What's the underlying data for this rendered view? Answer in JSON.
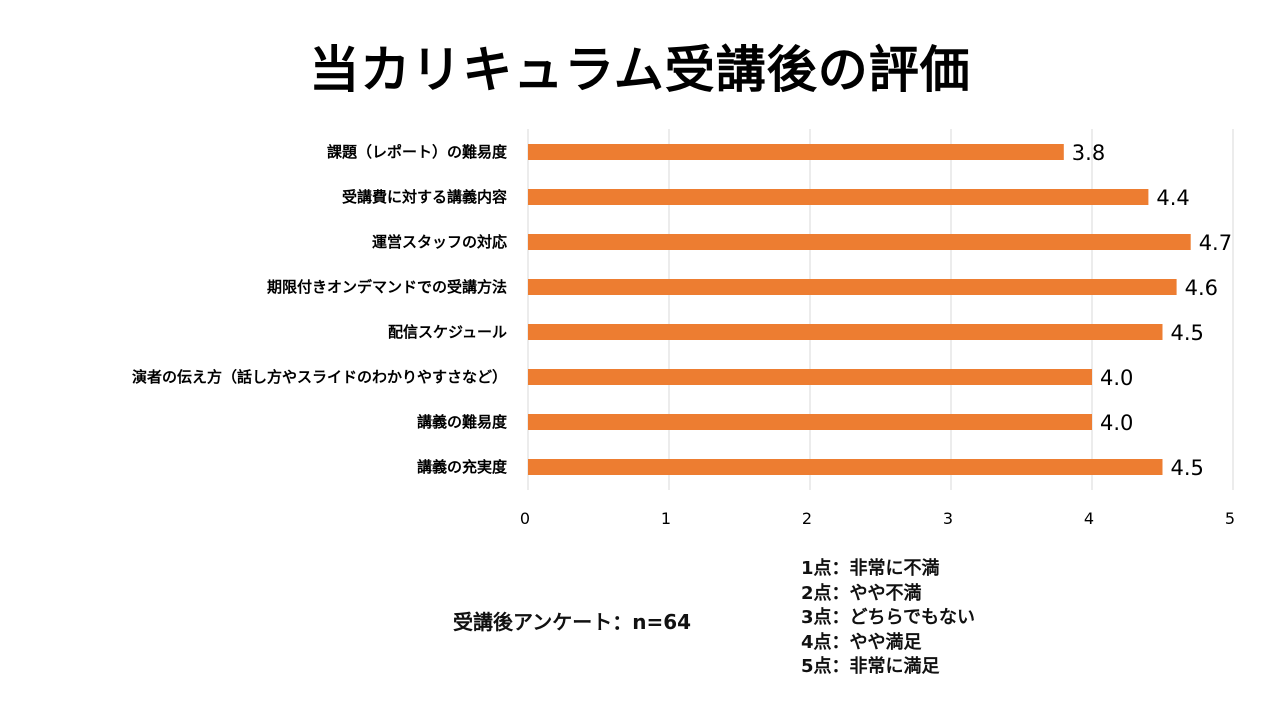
{
  "title": "当カリキュラム受講後の評価",
  "chart_data": {
    "type": "bar",
    "orientation": "horizontal",
    "title": "当カリキュラム受講後の評価",
    "categories": [
      "課題（レポート）の難易度",
      "受講費に対する講義内容",
      "運営スタッフの対応",
      "期限付きオンデマンドでの受講方法",
      "配信スケジュール",
      "演者の伝え方（話し方やスライドのわかりやすさなど）",
      "講義の難易度",
      "講義の充実度"
    ],
    "values": [
      3.8,
      4.4,
      4.7,
      4.6,
      4.5,
      4.0,
      4.0,
      4.5
    ],
    "value_labels": [
      "3.8",
      "4.4",
      "4.7",
      "4.6",
      "4.5",
      "4.0",
      "4.0",
      "4.5"
    ],
    "xlim": [
      0,
      5
    ],
    "xticks": [
      "0",
      "1",
      "2",
      "3",
      "4",
      "5"
    ],
    "grid": "vertical",
    "bar_color": "#ed7d31",
    "xlabel": "",
    "ylabel": ""
  },
  "note": "受講後アンケート：n=64",
  "scale_legend": [
    "1点：非常に不満",
    "2点：やや不満",
    "3点：どちらでもない",
    "4点：やや満足",
    "5点：非常に満足"
  ]
}
